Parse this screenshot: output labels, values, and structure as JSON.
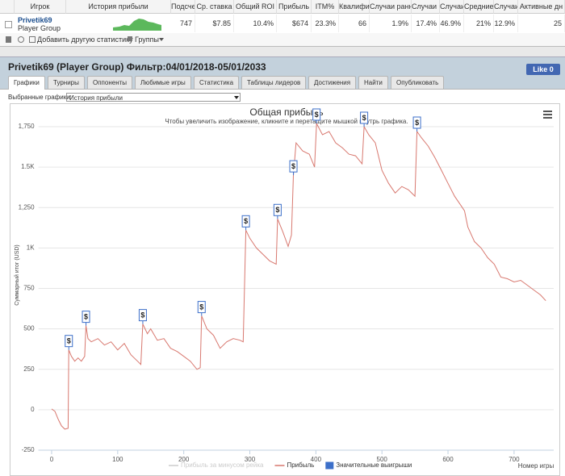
{
  "table": {
    "columns": [
      "Игрок",
      "История прибыли",
      "Подсче",
      "Ср. ставка",
      "Общий ROI",
      "Прибыль",
      "ITM%",
      "Квалифи",
      "Случаи ранне",
      "Случаи ;",
      "Случаи",
      "Средние",
      "Случаи",
      "Активные дн"
    ],
    "rows": [
      {
        "player": "Privetik69",
        "group": "Player Group",
        "cells": [
          "747",
          "$7.85",
          "10.4%",
          "$674",
          "23.3%",
          "66",
          "1.9%",
          "17.4%",
          "46.9%",
          "21%",
          "12.9%",
          "25"
        ]
      }
    ]
  },
  "toolbar": {
    "add_stat": "Добавить другую статистику",
    "groups": "Группы"
  },
  "panel": {
    "title": "Privetik69 (Player Group) Фильтр:04/01/2018-05/01/2033",
    "like_button": "Like 0",
    "tabs": [
      "Графики",
      "Турниры",
      "Оппоненты",
      "Любимые игры",
      "Статистика",
      "Таблицы лидеров",
      "Достижения",
      "Найти",
      "Опубликовать"
    ],
    "selected_label": "Выбранные графики:",
    "selected_value": "История прибыли"
  },
  "chart_data": {
    "type": "line",
    "title": "Общая прибыль",
    "subtitle": "Чтобы увеличить изображение, кликните и перетащите мышкой внутрь графика.",
    "x_label": "Номер игры",
    "y_label": "Суммарный итог (USD)",
    "xlim": [
      -20,
      760
    ],
    "ylim": [
      -250,
      1750
    ],
    "xticks": [
      0,
      100,
      200,
      300,
      400,
      500,
      600,
      700
    ],
    "yticks": [
      -250,
      0,
      250,
      500,
      750,
      {
        "value": 1000,
        "label": "1K"
      },
      {
        "value": 1250,
        "label": "1,250"
      },
      {
        "value": 1500,
        "label": "1.5K"
      },
      {
        "value": 1750,
        "label": "1,750"
      }
    ],
    "grid": true,
    "series": [
      {
        "name": "Прибыль за минусом рейка",
        "color": "#cccccc",
        "hidden": true
      },
      {
        "name": "Прибыль",
        "color": "#d8786f",
        "x": [
          0,
          5,
          10,
          15,
          20,
          25,
          26,
          30,
          35,
          40,
          45,
          50,
          52,
          55,
          60,
          70,
          80,
          90,
          100,
          110,
          120,
          130,
          135,
          138,
          145,
          150,
          160,
          170,
          180,
          190,
          200,
          210,
          220,
          225,
          227,
          235,
          245,
          255,
          265,
          275,
          285,
          290,
          294,
          300,
          310,
          320,
          330,
          340,
          342,
          350,
          358,
          363,
          366,
          370,
          380,
          390,
          398,
          401,
          410,
          420,
          430,
          440,
          450,
          460,
          470,
          473,
          480,
          490,
          500,
          510,
          520,
          530,
          540,
          550,
          553,
          560,
          570,
          580,
          590,
          600,
          610,
          620,
          625,
          630,
          640,
          650,
          660,
          670,
          680,
          690,
          700,
          710,
          720,
          730,
          740,
          748
        ],
        "values": [
          5,
          -10,
          -60,
          -100,
          -120,
          -115,
          370,
          330,
          300,
          320,
          300,
          330,
          520,
          440,
          420,
          440,
          400,
          420,
          370,
          410,
          340,
          300,
          280,
          530,
          470,
          500,
          430,
          440,
          380,
          360,
          330,
          300,
          250,
          260,
          580,
          500,
          460,
          380,
          420,
          440,
          430,
          420,
          1110,
          1060,
          1000,
          960,
          920,
          900,
          1180,
          1100,
          1010,
          1080,
          1450,
          1650,
          1600,
          1580,
          1500,
          1770,
          1700,
          1720,
          1650,
          1620,
          1580,
          1570,
          1520,
          1750,
          1700,
          1650,
          1480,
          1400,
          1340,
          1380,
          1360,
          1320,
          1720,
          1680,
          1630,
          1560,
          1480,
          1400,
          1320,
          1260,
          1230,
          1130,
          1040,
          1000,
          940,
          900,
          820,
          810,
          790,
          800,
          770,
          740,
          710,
          674
        ]
      }
    ],
    "big_wins": {
      "name": "Значительные выигрыши",
      "color": "#3c6fc9",
      "label": "$",
      "x": [
        26,
        52,
        138,
        227,
        294,
        342,
        366,
        401,
        473,
        553
      ],
      "values": [
        370,
        520,
        530,
        580,
        1110,
        1180,
        1450,
        1770,
        1750,
        1720
      ]
    }
  }
}
